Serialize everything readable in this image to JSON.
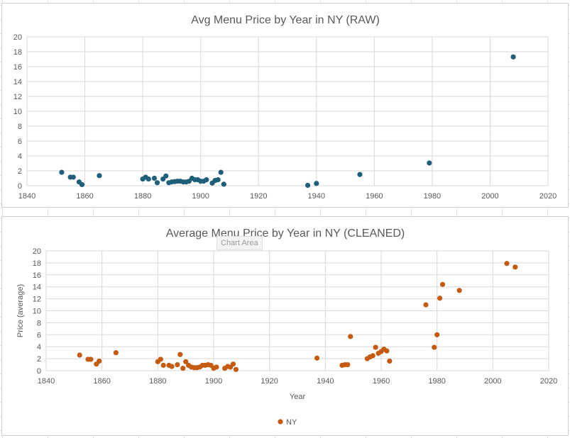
{
  "chart_data": [
    {
      "type": "scatter",
      "title": "Avg Menu Price by Year in NY (RAW)",
      "xlabel": "",
      "ylabel": "",
      "xlim": [
        1840,
        2020
      ],
      "ylim": [
        0,
        20
      ],
      "x_ticks": [
        "1840",
        "1860",
        "1880",
        "1900",
        "1920",
        "1940",
        "1960",
        "1980",
        "2000",
        "2020"
      ],
      "y_ticks": [
        "0",
        "2",
        "4",
        "6",
        "8",
        "10",
        "12",
        "14",
        "16",
        "18",
        "20"
      ],
      "grid": true,
      "legend": "none",
      "series": [
        {
          "color": "#1f5f7a",
          "points": [
            [
              1852,
              1.8
            ],
            [
              1855,
              1.15
            ],
            [
              1856,
              1.15
            ],
            [
              1858,
              0.5
            ],
            [
              1859,
              0.15
            ],
            [
              1865,
              1.35
            ],
            [
              1880,
              0.9
            ],
            [
              1881,
              1.15
            ],
            [
              1882,
              0.9
            ],
            [
              1884,
              1.0
            ],
            [
              1885,
              0.4
            ],
            [
              1887,
              0.9
            ],
            [
              1888,
              1.3
            ],
            [
              1889,
              0.4
            ],
            [
              1890,
              0.5
            ],
            [
              1891,
              0.55
            ],
            [
              1892,
              0.6
            ],
            [
              1893,
              0.6
            ],
            [
              1894,
              0.5
            ],
            [
              1895,
              0.5
            ],
            [
              1896,
              0.6
            ],
            [
              1897,
              1.0
            ],
            [
              1898,
              0.8
            ],
            [
              1899,
              0.8
            ],
            [
              1900,
              0.6
            ],
            [
              1901,
              0.6
            ],
            [
              1902,
              0.8
            ],
            [
              1904,
              0.35
            ],
            [
              1905,
              0.7
            ],
            [
              1906,
              0.8
            ],
            [
              1907,
              1.8
            ],
            [
              1908,
              0.2
            ],
            [
              1937,
              0.05
            ],
            [
              1940,
              0.3
            ],
            [
              1955,
              1.5
            ],
            [
              1979,
              3.05
            ],
            [
              2008,
              17.3
            ]
          ]
        }
      ]
    },
    {
      "type": "scatter",
      "title": "Average Menu Price by Year in NY (CLEANED)",
      "xlabel": "Year",
      "ylabel": "Price (average)",
      "xlim": [
        1840,
        2020
      ],
      "ylim": [
        0,
        20
      ],
      "x_ticks": [
        "1840",
        "1860",
        "1880",
        "1900",
        "1920",
        "1940",
        "1960",
        "1980",
        "2000",
        "2020"
      ],
      "y_ticks": [
        "0",
        "2",
        "4",
        "6",
        "8",
        "10",
        "12",
        "14",
        "16",
        "18",
        "20"
      ],
      "grid": true,
      "legend": "bottom",
      "series": [
        {
          "name": "NY",
          "color": "#c55a11",
          "points": [
            [
              1852,
              2.6
            ],
            [
              1855,
              1.9
            ],
            [
              1856,
              1.9
            ],
            [
              1858,
              1.1
            ],
            [
              1859,
              1.6
            ],
            [
              1865,
              3.0
            ],
            [
              1880,
              1.5
            ],
            [
              1881,
              1.9
            ],
            [
              1882,
              0.9
            ],
            [
              1884,
              0.9
            ],
            [
              1885,
              0.7
            ],
            [
              1887,
              1.0
            ],
            [
              1888,
              2.7
            ],
            [
              1889,
              0.4
            ],
            [
              1890,
              1.5
            ],
            [
              1891,
              0.9
            ],
            [
              1892,
              0.6
            ],
            [
              1893,
              0.5
            ],
            [
              1894,
              0.5
            ],
            [
              1895,
              0.6
            ],
            [
              1896,
              0.9
            ],
            [
              1897,
              0.9
            ],
            [
              1898,
              1.0
            ],
            [
              1899,
              0.9
            ],
            [
              1900,
              0.4
            ],
            [
              1901,
              0.6
            ],
            [
              1904,
              0.4
            ],
            [
              1905,
              0.7
            ],
            [
              1906,
              0.6
            ],
            [
              1907,
              1.1
            ],
            [
              1908,
              0.2
            ],
            [
              1937,
              2.1
            ],
            [
              1946,
              0.9
            ],
            [
              1947,
              1.0
            ],
            [
              1948,
              1.0
            ],
            [
              1949,
              5.7
            ],
            [
              1955,
              2.0
            ],
            [
              1956,
              2.3
            ],
            [
              1957,
              2.5
            ],
            [
              1958,
              3.9
            ],
            [
              1959,
              2.9
            ],
            [
              1960,
              3.2
            ],
            [
              1961,
              3.6
            ],
            [
              1962,
              3.3
            ],
            [
              1963,
              1.6
            ],
            [
              1976,
              11.0
            ],
            [
              1979,
              3.9
            ],
            [
              1980,
              6.0
            ],
            [
              1981,
              12.1
            ],
            [
              1982,
              14.4
            ],
            [
              1988,
              13.4
            ],
            [
              2005,
              17.9
            ],
            [
              2008,
              17.3
            ]
          ]
        }
      ]
    }
  ],
  "chart_area_tooltip": "Chart Area"
}
